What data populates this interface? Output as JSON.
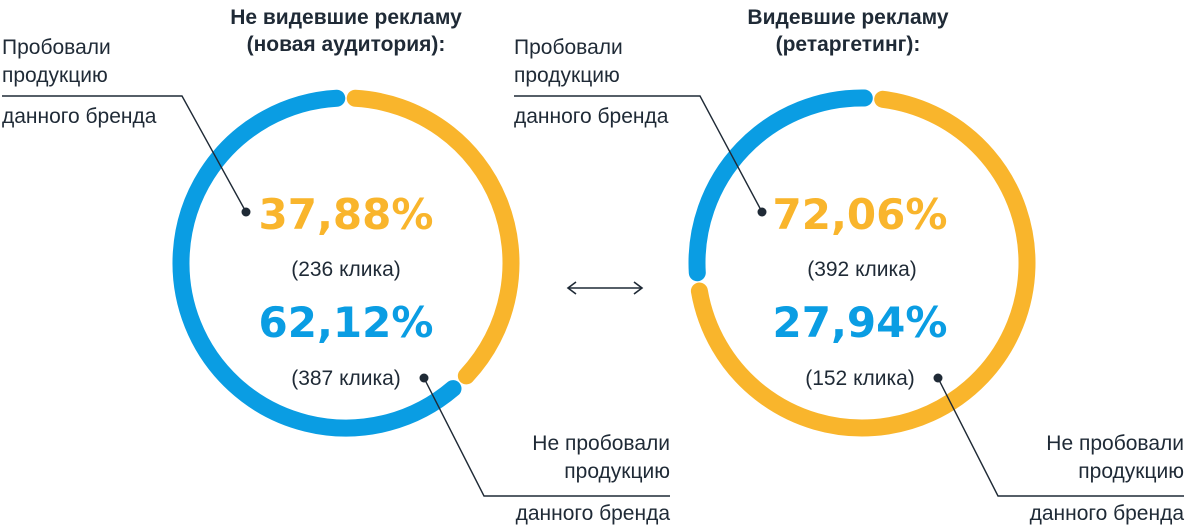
{
  "colors": {
    "tried": "#f9b52c",
    "not_tried": "#0a9de3",
    "text": "#1f2a36"
  },
  "icons": {
    "compare": "double-arrow-icon"
  },
  "chart_data": [
    {
      "type": "pie",
      "style": "donut",
      "title": "Не видевшие рекламу (новая аудитория):",
      "title_lines": [
        "Не видевшие рекламу",
        "(новая аудитория):"
      ],
      "slices": [
        {
          "label": "Пробовали продукцию данного бренда",
          "label_lines": [
            "Пробовали",
            "продукцию",
            "данного бренда"
          ],
          "value": 37.88,
          "display": "37,88%",
          "clicks": 236,
          "clicks_label": "(236 клика)",
          "color": "#f9b52c"
        },
        {
          "label": "Не пробовали продукцию данного бренда",
          "label_lines": [
            "Не пробовали",
            "продукцию",
            "данного бренда"
          ],
          "value": 62.12,
          "display": "62,12%",
          "clicks": 387,
          "clicks_label": "(387 клика)",
          "color": "#0a9de3"
        }
      ]
    },
    {
      "type": "pie",
      "style": "donut",
      "title": "Видевшие рекламу (ретаргетинг):",
      "title_lines": [
        "Видевшие рекламу",
        "(ретаргетинг):"
      ],
      "slices": [
        {
          "label": "Пробовали продукцию данного бренда",
          "label_lines": [
            "Пробовали",
            "продукцию",
            "данного бренда"
          ],
          "value": 72.06,
          "display": "72,06%",
          "clicks": 392,
          "clicks_label": "(392 клика)",
          "color": "#f9b52c"
        },
        {
          "label": "Не пробовали продукцию данного бренда",
          "label_lines": [
            "Не пробовали",
            "продукцию",
            "данного бренда"
          ],
          "value": 27.94,
          "display": "27,94%",
          "clicks": 152,
          "clicks_label": "(152 клика)",
          "color": "#0a9de3"
        }
      ]
    }
  ]
}
